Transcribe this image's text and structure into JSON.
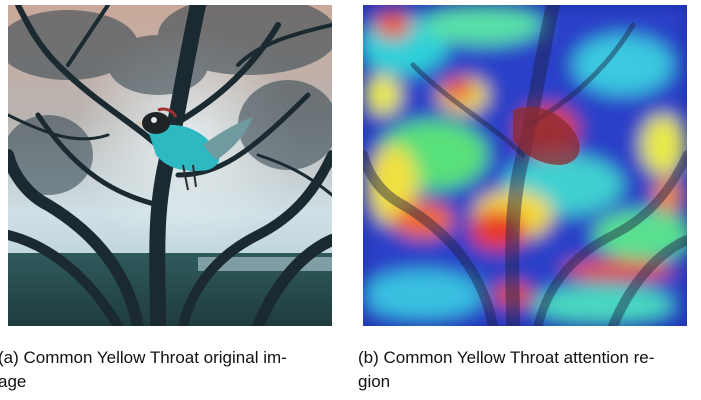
{
  "figures": [
    {
      "caption_line1": "(a) Common Yellow Throat original im-",
      "caption_line2": "age"
    },
    {
      "caption_line1": "(b) Common Yellow Throat attention re-",
      "caption_line2": "gion"
    }
  ]
}
